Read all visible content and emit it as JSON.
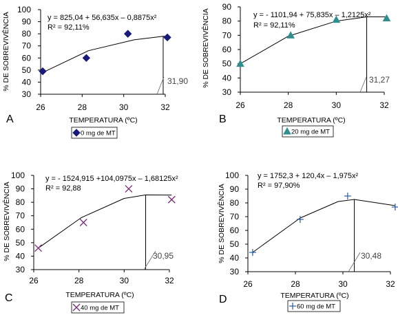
{
  "chart_data": [
    {
      "type": "scatter",
      "panel_label": "A",
      "xlabel": "TEMPERATURA (ºC)",
      "ylabel": "% DE SOBREVIVÊNCIA",
      "xlim": [
        26,
        32
      ],
      "ylim": [
        30,
        100
      ],
      "x_ticks": [
        26,
        28,
        30,
        32
      ],
      "y_ticks": [
        30,
        40,
        50,
        60,
        70,
        80,
        90,
        100
      ],
      "series": [
        {
          "name": "0 mg de MT",
          "marker": "diamond",
          "color": "#1a1a7a",
          "x": [
            26.1,
            28.2,
            30.2,
            32.1
          ],
          "y": [
            49,
            60,
            80,
            77
          ]
        }
      ],
      "fit": {
        "type": "polynomial",
        "xmin": 26.1,
        "xmax": 32.1,
        "curve": {
          "x": [
            26.1,
            28.3,
            30.5,
            31.9,
            32.1
          ],
          "y": [
            48,
            66,
            75,
            78,
            78
          ]
        }
      },
      "equation_text": "y = 825,04 + 56,635x – 0,8875x²",
      "r2_text": "R² = 92,11%",
      "vertex_x": 31.9,
      "annotation": "31,90"
    },
    {
      "type": "scatter",
      "panel_label": "B",
      "xlabel": "TEMPERATURA (ºC)",
      "ylabel": "% DE SOBREVIVÊNCIA",
      "xlim": [
        26,
        32
      ],
      "ylim": [
        30,
        90
      ],
      "x_ticks": [
        26,
        28,
        30,
        32
      ],
      "y_ticks": [
        30,
        40,
        50,
        60,
        70,
        80,
        90
      ],
      "series": [
        {
          "name": "20 mg de MT",
          "marker": "triangle",
          "color": "#2f8f8f",
          "x": [
            26.0,
            28.1,
            30.0,
            32.1
          ],
          "y": [
            50,
            70,
            81,
            82
          ]
        }
      ],
      "fit": {
        "type": "polynomial",
        "xmin": 26.0,
        "xmax": 32.1,
        "curve": {
          "x": [
            26.0,
            28.0,
            30.0,
            31.27,
            32.1
          ],
          "y": [
            50,
            69.4,
            80,
            83,
            83
          ]
        }
      },
      "equation_text": "y = - 1101,94 + 75,835x – 1,2125x²",
      "r2_text": "R² = 92,11%",
      "vertex_x": 31.27,
      "annotation": "31,27"
    },
    {
      "type": "scatter",
      "panel_label": "C",
      "xlabel": "TEMPERATURA (ºC)",
      "ylabel": "% DE SOBREVIVÊNCIA",
      "xlim": [
        26,
        32
      ],
      "ylim": [
        30,
        100
      ],
      "x_ticks": [
        26,
        28,
        30,
        32
      ],
      "y_ticks": [
        30,
        40,
        50,
        60,
        70,
        80,
        90,
        100
      ],
      "series": [
        {
          "name": "40 mg de MT",
          "marker": "asterisk",
          "color": "#7a2a7a",
          "x": [
            26.2,
            28.2,
            30.2,
            32.1
          ],
          "y": [
            46,
            65,
            90,
            82
          ]
        }
      ],
      "fit": {
        "type": "polynomial",
        "xmin": 26.2,
        "xmax": 32.1,
        "curve": {
          "x": [
            26.2,
            28.1,
            30.0,
            30.95,
            32.1
          ],
          "y": [
            46,
            68.6,
            82.9,
            85.5,
            85.4
          ]
        }
      },
      "equation_text": "y = - 1524,915 +104,0975x – 1,68125x²",
      "r2_text": "R² = 92,88",
      "vertex_x": 30.95,
      "annotation": "30,95"
    },
    {
      "type": "scatter",
      "panel_label": "D",
      "xlabel": "TEMPERATURA (ºC)",
      "ylabel": "% DE SOBREVIVÊNCIA",
      "xlim": [
        26,
        32
      ],
      "ylim": [
        30,
        100
      ],
      "x_ticks": [
        26,
        28,
        30,
        32
      ],
      "y_ticks": [
        30,
        40,
        50,
        60,
        70,
        80,
        90,
        100
      ],
      "series": [
        {
          "name": "60 mg de MT",
          "marker": "plus",
          "color": "#2a5aa0",
          "x": [
            26.2,
            28.2,
            30.2,
            32.2
          ],
          "y": [
            44,
            68,
            85,
            77
          ]
        }
      ],
      "fit": {
        "type": "polynomial",
        "xmin": 26.2,
        "xmax": 32.2,
        "curve": {
          "x": [
            26.2,
            28.2,
            29.8,
            30.48,
            32.2
          ],
          "y": [
            44,
            69,
            81,
            82.5,
            78
          ]
        }
      },
      "equation_text": "y = 1752,3 + 120,4x – 1,975x²",
      "r2_text": "R² = 97,90%",
      "vertex_x": 30.48,
      "annotation": "30,48"
    }
  ]
}
